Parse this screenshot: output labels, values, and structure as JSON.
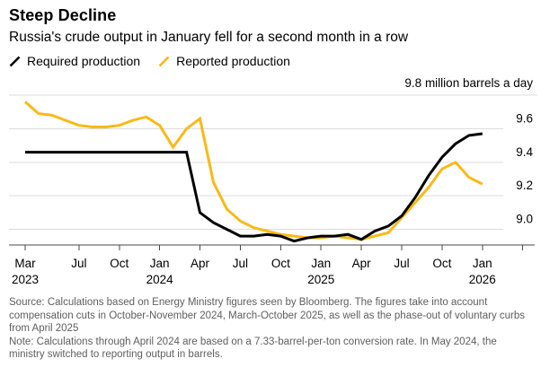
{
  "header": {
    "title": "Steep Decline",
    "subtitle": "Russia's crude output in January fell for a second month in a row"
  },
  "legend": {
    "items": [
      {
        "label": "Required production",
        "color": "#000000"
      },
      {
        "label": "Reported production",
        "color": "#f9b918"
      }
    ]
  },
  "chart_data": {
    "type": "line",
    "title": "Steep Decline",
    "subtitle": "Russia's crude output in January fell for a second month in a row",
    "unit_label": "9.8 million barrels a day",
    "ylim": [
      8.9,
      9.8
    ],
    "grid": true,
    "legend_position": "top",
    "x": [
      "Mar 2023",
      "Apr 2023",
      "May 2023",
      "Jun 2023",
      "Jul 2023",
      "Aug 2023",
      "Sep 2023",
      "Oct 2023",
      "Nov 2023",
      "Dec 2023",
      "Jan 2024",
      "Feb 2024",
      "Mar 2024",
      "Apr 2024",
      "May 2024",
      "Jun 2024",
      "Jul 2024",
      "Aug 2024",
      "Sep 2024",
      "Oct 2024",
      "Nov 2024",
      "Dec 2024",
      "Jan 2025",
      "Feb 2025",
      "Mar 2025",
      "Apr 2025",
      "May 2025",
      "Jun 2025",
      "Jul 2025",
      "Aug 2025",
      "Sep 2025",
      "Oct 2025",
      "Nov 2025",
      "Dec 2025",
      "Jan 2026"
    ],
    "series": [
      {
        "name": "Required production",
        "color": "#000000",
        "values": [
          9.46,
          9.46,
          9.46,
          9.46,
          9.46,
          9.46,
          9.46,
          9.46,
          9.46,
          9.46,
          9.46,
          9.46,
          9.46,
          9.1,
          9.04,
          9.0,
          8.96,
          8.96,
          8.97,
          8.96,
          8.93,
          8.95,
          8.96,
          8.96,
          8.97,
          8.94,
          8.99,
          9.02,
          9.08,
          9.19,
          9.32,
          9.43,
          9.51,
          9.56,
          9.57
        ]
      },
      {
        "name": "Reported production",
        "color": "#f9b918",
        "values": [
          9.76,
          9.69,
          9.68,
          9.65,
          9.62,
          9.61,
          9.61,
          9.62,
          9.65,
          9.67,
          9.62,
          9.49,
          9.6,
          9.66,
          9.28,
          9.12,
          9.05,
          9.01,
          8.99,
          8.97,
          8.96,
          8.95,
          8.95,
          8.96,
          8.95,
          8.94,
          8.96,
          8.98,
          9.07,
          9.16,
          9.25,
          9.36,
          9.4,
          9.31,
          9.27
        ]
      }
    ],
    "yticks": [
      {
        "value": 9.0,
        "label": "9.0"
      },
      {
        "value": 9.2,
        "label": "9.2"
      },
      {
        "value": 9.4,
        "label": "9.4"
      },
      {
        "value": 9.6,
        "label": "9.6"
      },
      {
        "value": 9.8,
        "label": "9.8 million barrels a day",
        "unit": true
      }
    ],
    "xticks": [
      {
        "m": 0,
        "label": "Mar",
        "year": "2023"
      },
      {
        "m": 4,
        "label": "Jul"
      },
      {
        "m": 7,
        "label": "Oct"
      },
      {
        "m": 10,
        "label": "Jan",
        "year": "2024"
      },
      {
        "m": 13,
        "label": "Apr"
      },
      {
        "m": 16,
        "label": "Jul"
      },
      {
        "m": 19,
        "label": "Oct"
      },
      {
        "m": 22,
        "label": "Jan",
        "year": "2025"
      },
      {
        "m": 25,
        "label": "Apr"
      },
      {
        "m": 28,
        "label": "Jul"
      },
      {
        "m": 31,
        "label": "Oct"
      },
      {
        "m": 34,
        "label": "Jan",
        "year": "2026"
      },
      {
        "m": 37,
        "label": ""
      }
    ]
  },
  "footer": {
    "source": "Source: Calculations based on Energy Ministry figures seen by Bloomberg. The figures take into account compensation cuts in October-November 2024, March-October 2025, as well as the phase-out of voluntary curbs from April 2025",
    "note": "Note: Calculations through April 2024 are based on a 7.33-barrel-per-ton conversion rate. In May 2024, the ministry switched to reporting output in barrels."
  }
}
